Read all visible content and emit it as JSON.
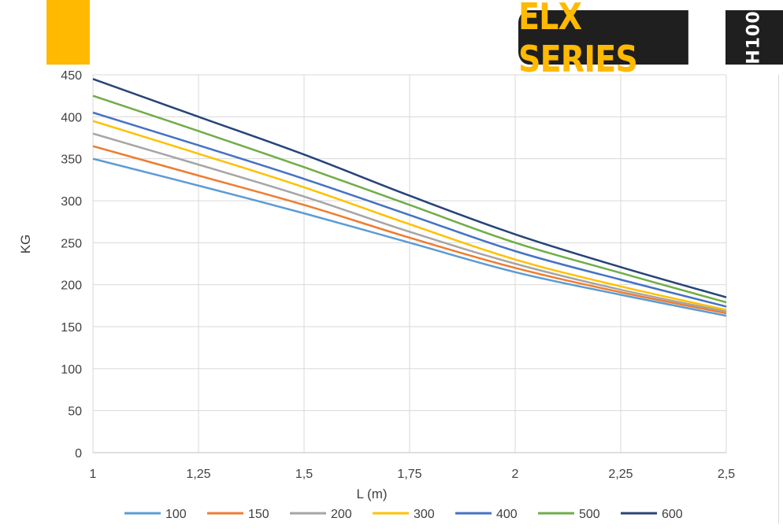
{
  "header": {
    "brand": "ELX SERIES",
    "model": "H100",
    "accent_color": "#FFB900",
    "badge_color": "#1f1f1f"
  },
  "chart_data": {
    "type": "line",
    "title": "",
    "xlabel": "L (m)",
    "ylabel": "KG",
    "x": [
      1,
      1.25,
      1.5,
      1.75,
      2,
      2.25,
      2.5
    ],
    "x_tick_labels": [
      "1",
      "1,25",
      "1,5",
      "1,75",
      "2",
      "2,25",
      "2,5"
    ],
    "xlim": [
      1,
      2.5
    ],
    "ylim": [
      0,
      450
    ],
    "y_ticks": [
      0,
      50,
      100,
      150,
      200,
      250,
      300,
      350,
      400,
      450
    ],
    "grid": true,
    "legend_position": "bottom",
    "series": [
      {
        "name": "100",
        "color": "#5B9BD5",
        "values": [
          350,
          318,
          285,
          250,
          215,
          188,
          163
        ]
      },
      {
        "name": "150",
        "color": "#ED7D31",
        "values": [
          365,
          330,
          295,
          256,
          220,
          191,
          166
        ]
      },
      {
        "name": "200",
        "color": "#A5A5A5",
        "values": [
          380,
          343,
          305,
          263,
          225,
          194,
          168
        ]
      },
      {
        "name": "300",
        "color": "#FFC000",
        "values": [
          395,
          356,
          316,
          272,
          230,
          198,
          170
        ]
      },
      {
        "name": "400",
        "color": "#4472C4",
        "values": [
          405,
          366,
          326,
          283,
          240,
          206,
          174
        ]
      },
      {
        "name": "500",
        "color": "#70AD47",
        "values": [
          425,
          383,
          340,
          295,
          250,
          214,
          179
        ]
      },
      {
        "name": "600",
        "color": "#264478",
        "values": [
          445,
          400,
          355,
          306,
          260,
          221,
          185
        ]
      }
    ]
  }
}
